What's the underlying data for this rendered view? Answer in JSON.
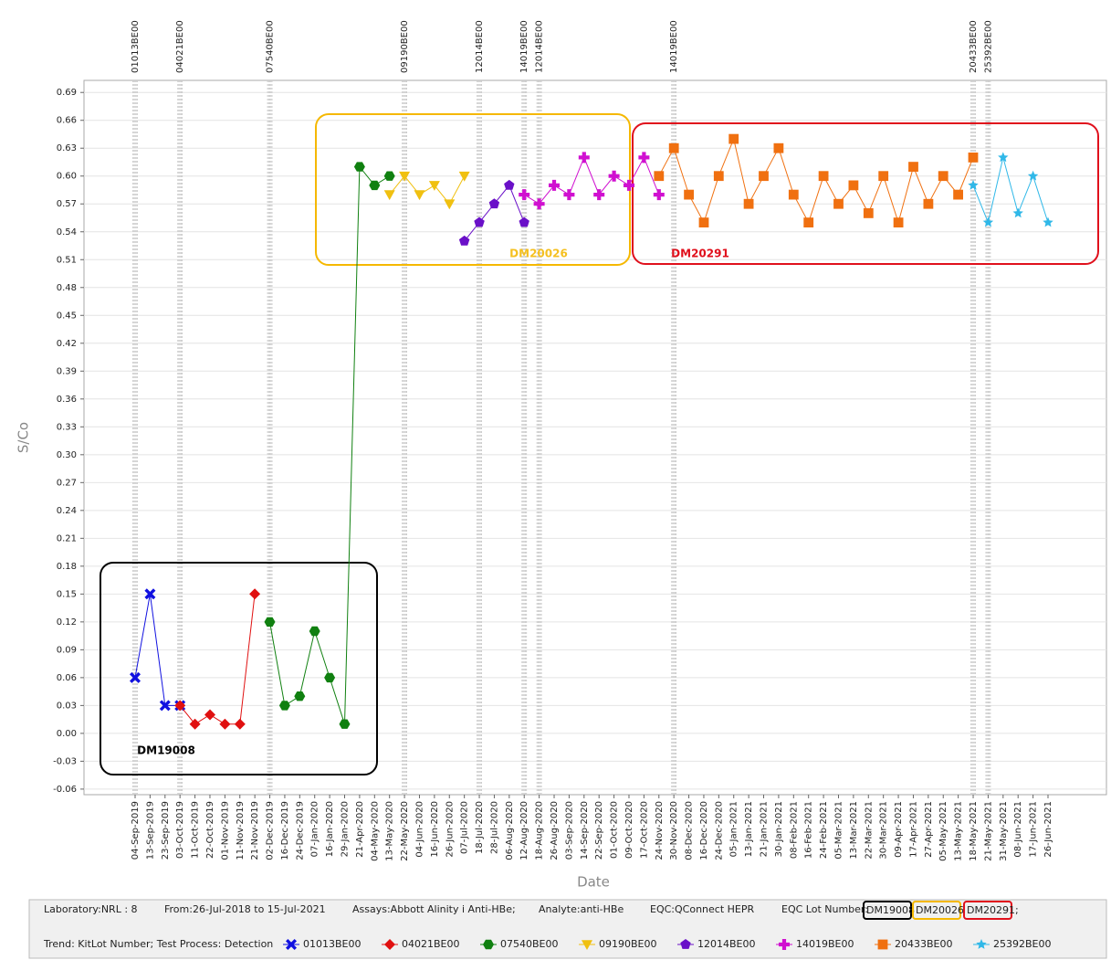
{
  "chart_data": {
    "type": "line",
    "y_label": "S/Co",
    "x_label": "Date",
    "ylim": [
      -0.066,
      0.703
    ],
    "yticks": [
      -0.06,
      -0.03,
      {
        "value": 0,
        "label": "0.00"
      },
      0.03,
      0.06,
      0.09,
      0.12,
      0.15,
      0.18,
      0.21,
      0.24,
      0.27,
      {
        "value": 0.3,
        "label": "0.30"
      },
      0.33,
      0.36,
      0.39,
      0.42,
      0.45,
      0.48,
      0.51,
      0.54,
      0.57,
      {
        "value": 0.6,
        "label": "0.60"
      },
      0.63,
      0.66,
      0.69
    ],
    "grid": true,
    "categories": [
      "04-Sep-2019",
      "13-Sep-2019",
      "23-Sep-2019",
      "03-Oct-2019",
      "11-Oct-2019",
      "22-Oct-2019",
      "01-Nov-2019",
      "11-Nov-2019",
      "21-Nov-2019",
      "02-Dec-2019",
      "16-Dec-2019",
      "24-Dec-2019",
      "07-Jan-2020",
      "16-Jan-2020",
      "29-Jan-2020",
      "21-Apr-2020",
      "04-May-2020",
      "13-May-2020",
      "22-May-2020",
      "04-Jun-2020",
      "16-Jun-2020",
      "26-Jun-2020",
      "07-Jul-2020",
      "18-Jul-2020",
      "28-Jul-2020",
      "06-Aug-2020",
      "12-Aug-2020",
      "18-Aug-2020",
      "26-Aug-2020",
      "03-Sep-2020",
      "14-Sep-2020",
      "22-Sep-2020",
      "01-Oct-2020",
      "09-Oct-2020",
      "17-Oct-2020",
      "24-Nov-2020",
      "30-Nov-2020",
      "08-Dec-2020",
      "16-Dec-2020",
      "24-Dec-2020",
      "05-Jan-2021",
      "13-Jan-2021",
      "21-Jan-2021",
      "30-Jan-2021",
      "08-Feb-2021",
      "16-Feb-2021",
      "24-Feb-2021",
      "05-Mar-2021",
      "13-Mar-2021",
      "22-Mar-2021",
      "30-Mar-2021",
      "09-Apr-2021",
      "17-Apr-2021",
      "27-Apr-2021",
      "05-May-2021",
      "13-May-2021",
      "18-May-2021",
      "21-May-2021",
      "31-May-2021",
      "08-Jun-2021",
      "17-Jun-2021",
      "26-Jun-2021"
    ],
    "series": [
      {
        "name": "01013BE00",
        "color": "#1010e0",
        "marker": "cross",
        "values": [
          0.06,
          0.15,
          0.03,
          0.03,
          null,
          null,
          null,
          null,
          null,
          null,
          null,
          null,
          null,
          null,
          null,
          null,
          null,
          null,
          null,
          null,
          null,
          null,
          null,
          null,
          null,
          null,
          null,
          null,
          null,
          null,
          null,
          null,
          null,
          null,
          null,
          null,
          null,
          null,
          null,
          null,
          null,
          null,
          null,
          null,
          null,
          null,
          null,
          null,
          null,
          null,
          null,
          null,
          null,
          null,
          null,
          null,
          null,
          null,
          null,
          null,
          null,
          null
        ]
      },
      {
        "name": "04021BE00",
        "color": "#e01010",
        "marker": "diamond",
        "values": [
          null,
          null,
          null,
          0.03,
          0.01,
          0.02,
          0.01,
          0.01,
          0.15,
          null,
          null,
          null,
          null,
          null,
          null,
          null,
          null,
          null,
          null,
          null,
          null,
          null,
          null,
          null,
          null,
          null,
          null,
          null,
          null,
          null,
          null,
          null,
          null,
          null,
          null,
          null,
          null,
          null,
          null,
          null,
          null,
          null,
          null,
          null,
          null,
          null,
          null,
          null,
          null,
          null,
          null,
          null,
          null,
          null,
          null,
          null,
          null,
          null,
          null,
          null,
          null,
          null
        ]
      },
      {
        "name": "07540BE00",
        "color": "#108010",
        "marker": "hexagon",
        "values": [
          null,
          null,
          null,
          null,
          null,
          null,
          null,
          null,
          null,
          0.12,
          0.03,
          0.04,
          0.11,
          0.06,
          0.01,
          0.61,
          0.59,
          0.6,
          null,
          null,
          null,
          null,
          null,
          null,
          null,
          null,
          null,
          null,
          null,
          null,
          null,
          null,
          null,
          null,
          null,
          null,
          null,
          null,
          null,
          null,
          null,
          null,
          null,
          null,
          null,
          null,
          null,
          null,
          null,
          null,
          null,
          null,
          null,
          null,
          null,
          null,
          null,
          null,
          null,
          null,
          null,
          null
        ]
      },
      {
        "name": "09190BE00",
        "color": "#f0c010",
        "marker": "triangle-down",
        "values": [
          null,
          null,
          null,
          null,
          null,
          null,
          null,
          null,
          null,
          null,
          null,
          null,
          null,
          null,
          null,
          null,
          null,
          0.58,
          0.6,
          0.58,
          0.59,
          0.57,
          0.6,
          null,
          null,
          null,
          null,
          null,
          null,
          null,
          null,
          null,
          null,
          null,
          null,
          null,
          null,
          null,
          null,
          null,
          null,
          null,
          null,
          null,
          null,
          null,
          null,
          null,
          null,
          null,
          null,
          null,
          null,
          null,
          null,
          null,
          null,
          null,
          null,
          null,
          null,
          null
        ]
      },
      {
        "name": "12014BE00",
        "color": "#6a10c8",
        "marker": "pentagon",
        "values": [
          null,
          null,
          null,
          null,
          null,
          null,
          null,
          null,
          null,
          null,
          null,
          null,
          null,
          null,
          null,
          null,
          null,
          null,
          null,
          null,
          null,
          null,
          0.53,
          0.55,
          0.57,
          0.59,
          0.55,
          null,
          null,
          null,
          null,
          null,
          null,
          null,
          null,
          null,
          null,
          null,
          null,
          null,
          null,
          null,
          null,
          null,
          null,
          null,
          null,
          null,
          null,
          null,
          null,
          null,
          null,
          null,
          null,
          null,
          null,
          null,
          null,
          null,
          null,
          null
        ]
      },
      {
        "name": "14019BE00",
        "color": "#d010d0",
        "marker": "plus",
        "values": [
          null,
          null,
          null,
          null,
          null,
          null,
          null,
          null,
          null,
          null,
          null,
          null,
          null,
          null,
          null,
          null,
          null,
          null,
          null,
          null,
          null,
          null,
          null,
          null,
          null,
          null,
          0.58,
          0.57,
          0.59,
          0.58,
          0.62,
          0.58,
          0.6,
          0.59,
          0.62,
          0.58,
          null,
          null,
          null,
          null,
          null,
          null,
          null,
          null,
          null,
          null,
          null,
          null,
          null,
          null,
          null,
          null,
          null,
          null,
          null,
          null,
          null,
          null,
          null,
          null,
          null,
          null
        ]
      },
      {
        "name": "20433BE00",
        "color": "#f07010",
        "marker": "square",
        "values": [
          null,
          null,
          null,
          null,
          null,
          null,
          null,
          null,
          null,
          null,
          null,
          null,
          null,
          null,
          null,
          null,
          null,
          null,
          null,
          null,
          null,
          null,
          null,
          null,
          null,
          null,
          null,
          null,
          null,
          null,
          null,
          null,
          null,
          null,
          null,
          0.6,
          0.63,
          0.58,
          0.55,
          0.6,
          0.64,
          0.57,
          0.6,
          0.63,
          0.58,
          0.55,
          0.6,
          0.57,
          0.59,
          0.56,
          0.6,
          0.55,
          0.61,
          0.57,
          0.6,
          0.58,
          0.62,
          null,
          null,
          null,
          null,
          null
        ]
      },
      {
        "name": "25392BE00",
        "color": "#30b8e8",
        "marker": "star",
        "values": [
          null,
          null,
          null,
          null,
          null,
          null,
          null,
          null,
          null,
          null,
          null,
          null,
          null,
          null,
          null,
          null,
          null,
          null,
          null,
          null,
          null,
          null,
          null,
          null,
          null,
          null,
          null,
          null,
          null,
          null,
          null,
          null,
          null,
          null,
          null,
          null,
          null,
          null,
          null,
          null,
          null,
          null,
          null,
          null,
          null,
          null,
          null,
          null,
          null,
          null,
          null,
          null,
          null,
          null,
          null,
          null,
          0.59,
          0.55,
          0.62,
          0.56,
          0.6,
          0.55
        ]
      }
    ],
    "lot_markers": [
      {
        "label": "01013BE00",
        "category": "04-Sep-2019"
      },
      {
        "label": "04021BE00",
        "category": "03-Oct-2019"
      },
      {
        "label": "07540BE00",
        "category": "02-Dec-2019"
      },
      {
        "label": "09190BE00",
        "category": "22-May-2020"
      },
      {
        "label": "12014BE00",
        "category": "18-Jul-2020"
      },
      {
        "label": "14019BE00",
        "category": "12-Aug-2020"
      },
      {
        "label": "12014BE00",
        "category": "18-Aug-2020"
      },
      {
        "label": "14019BE00",
        "category": "30-Nov-2020"
      },
      {
        "label": "20433BE00",
        "category": "18-May-2021"
      },
      {
        "label": "25392BE00",
        "category": "21-May-2021"
      }
    ],
    "annotations": [
      {
        "text": "DM19008",
        "color": "#000000"
      },
      {
        "text": "DM20026",
        "color": "#f5b800"
      },
      {
        "text": "DM20291",
        "color": "#e0101c"
      }
    ]
  },
  "footer": {
    "info": [
      "Laboratory:NRL : 8",
      "From:26-Jul-2018 to 15-Jul-2021",
      "Assays:Abbott Alinity i Anti-HBe;",
      "Analyte:anti-HBe",
      "EQC:QConnect HEPR",
      "EQC Lot Number:"
    ],
    "lot_numbers": [
      "DM19008",
      "DM20026",
      "DM20291;"
    ],
    "trend": "Trend: KitLot Number; Test Process: Detection"
  }
}
